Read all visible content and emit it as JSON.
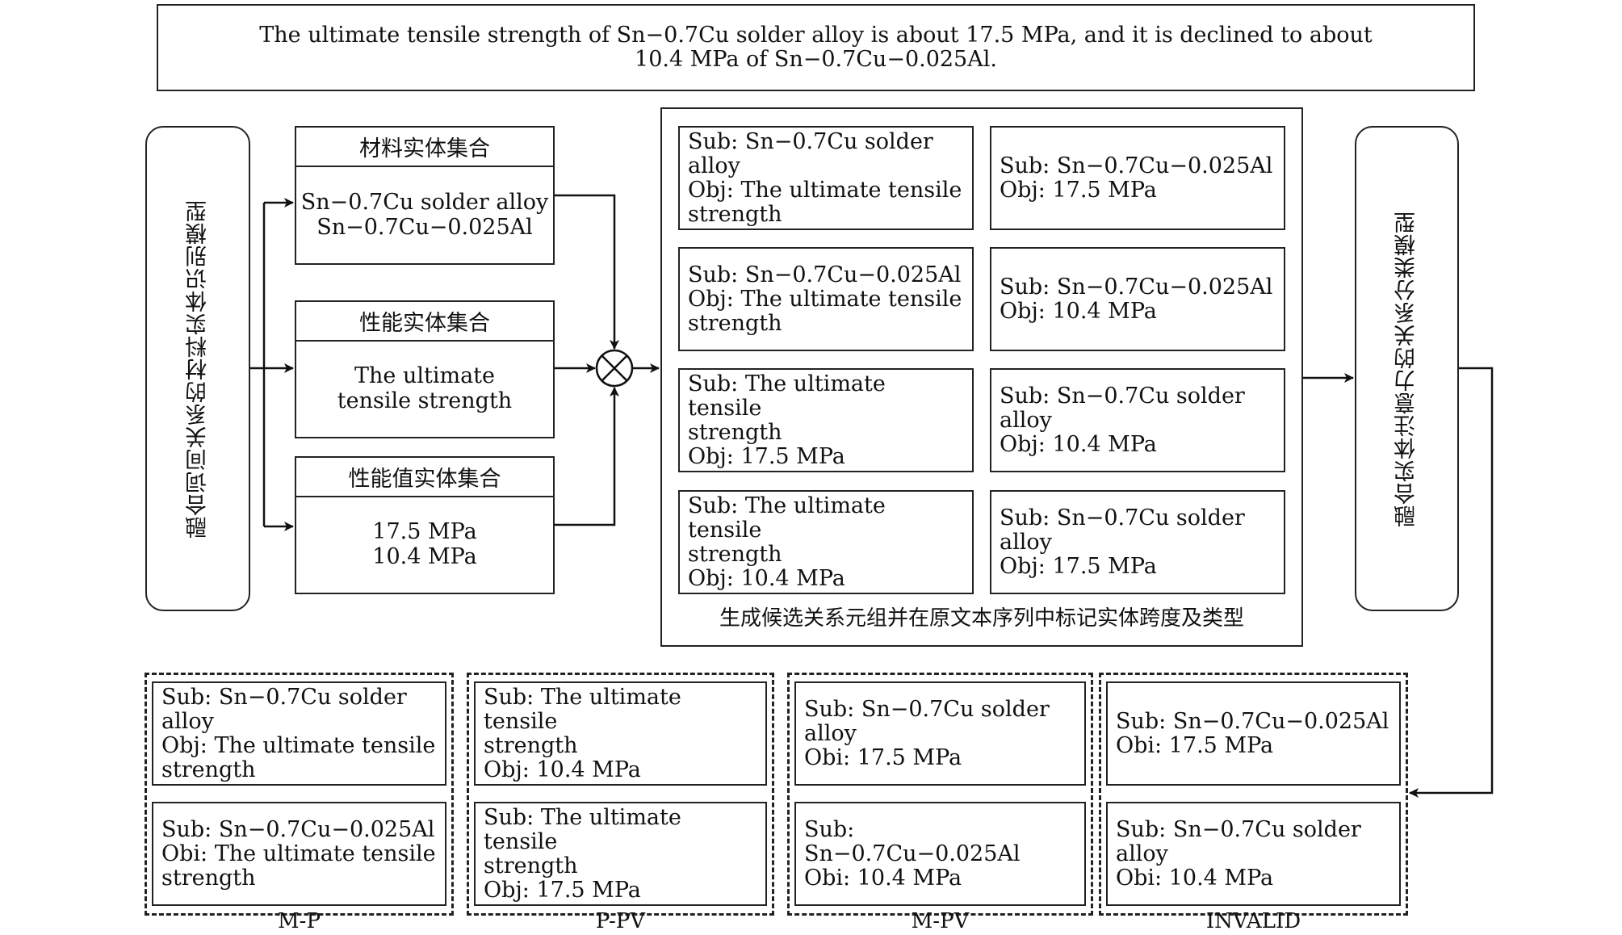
{
  "sentence": {
    "line1": "The ultimate tensile strength of Sn−0.7Cu solder alloy is about 17.5 MPa, and it is declined to about",
    "line2": "10.4 MPa of Sn−0.7Cu−0.025Al."
  },
  "ner_model": "融合词间关系的材料实体识别模型",
  "re_model": "融合实体注意力的关系分类模型",
  "entity_sets": [
    {
      "title": "材料实体集合",
      "items": [
        "Sn−0.7Cu solder alloy",
        "Sn−0.7Cu−0.025Al"
      ]
    },
    {
      "title": "性能实体集合",
      "items": [
        "The ultimate",
        "tensile strength"
      ]
    },
    {
      "title": "性能值实体集合",
      "items": [
        "17.5 MPa",
        "10.4 MPa"
      ]
    }
  ],
  "candidates": [
    [
      "Sub: Sn−0.7Cu solder alloy",
      "Obj: The ultimate tensile",
      "strength"
    ],
    [
      "Sub: Sn−0.7Cu−0.025Al",
      "Obj: 17.5 MPa"
    ],
    [
      "Sub: Sn−0.7Cu−0.025Al",
      "Obj: The ultimate tensile",
      "strength"
    ],
    [
      "Sub: Sn−0.7Cu−0.025Al",
      "Obj: 10.4 MPa"
    ],
    [
      "Sub: The ultimate tensile",
      "strength",
      "Obj: 17.5 MPa"
    ],
    [
      "Sub: Sn−0.7Cu solder alloy",
      "Obj: 10.4 MPa"
    ],
    [
      "Sub: The ultimate tensile",
      "strength",
      "Obj: 10.4 MPa"
    ],
    [
      "Sub: Sn−0.7Cu solder alloy",
      "Obj: 17.5 MPa"
    ]
  ],
  "candidates_caption": "生成候选关系元组并在原文本序列中标记实体跨度及类型",
  "groups": [
    {
      "label": "M-P",
      "items": [
        [
          "Sub: Sn−0.7Cu solder alloy",
          "Obj: The ultimate tensile",
          "strength"
        ],
        [
          "Sub: Sn−0.7Cu−0.025Al",
          "Obi: The ultimate tensile",
          "strength"
        ]
      ]
    },
    {
      "label": "P-PV",
      "items": [
        [
          "Sub: The ultimate tensile",
          "strength",
          "Obj: 10.4 MPa"
        ],
        [
          "Sub: The ultimate tensile",
          "strength",
          "Obj: 17.5 MPa"
        ]
      ]
    },
    {
      "label": "M-PV",
      "items": [
        [
          "Sub: Sn−0.7Cu solder alloy",
          "Obi: 17.5 MPa"
        ],
        [
          "Sub: Sn−0.7Cu−0.025Al",
          "Obi: 10.4 MPa"
        ]
      ]
    },
    {
      "label": "INVALID",
      "items": [
        [
          "Sub: Sn−0.7Cu−0.025Al",
          "Obi: 17.5 MPa"
        ],
        [
          "Sub: Sn−0.7Cu solder alloy",
          "Obi: 10.4 MPa"
        ]
      ]
    }
  ]
}
